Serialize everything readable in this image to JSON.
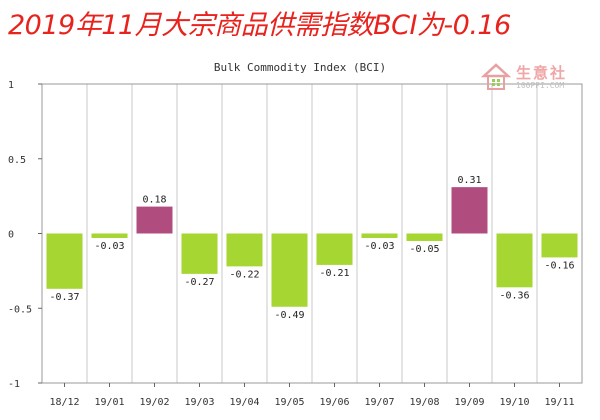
{
  "headline": "2019年11月大宗商品供需指数BCI为-0.16",
  "logo": {
    "name": "生意社",
    "url": "100PPI.COM",
    "icon": "house-icon"
  },
  "colors": {
    "negative": "#a6d632",
    "positive": "#b04c7e",
    "headline": "#e8231d",
    "grid": "#c8c8c8"
  },
  "chart_data": {
    "type": "bar",
    "title": "Bulk Commodity Index (BCI)",
    "categories": [
      "18/12",
      "19/01",
      "19/02",
      "19/03",
      "19/04",
      "19/05",
      "19/06",
      "19/07",
      "19/08",
      "19/09",
      "19/10",
      "19/11"
    ],
    "values": [
      -0.37,
      -0.03,
      0.18,
      -0.27,
      -0.22,
      -0.49,
      -0.21,
      -0.03,
      -0.05,
      0.31,
      -0.36,
      -0.16
    ],
    "data_labels": [
      "-0.37",
      "-0.03",
      "0.18",
      "-0.27",
      "-0.22",
      "-0.49",
      "-0.21",
      "-0.03",
      "-0.05",
      "0.31",
      "-0.36",
      "-0.16"
    ],
    "ylim": [
      -1,
      1
    ],
    "yticks": [
      1,
      0.5,
      0,
      -0.5,
      -1
    ],
    "ytick_labels": [
      "1",
      "0.5",
      "0",
      "-0.5",
      "-1"
    ],
    "grid": "vertical",
    "legend": "none"
  }
}
